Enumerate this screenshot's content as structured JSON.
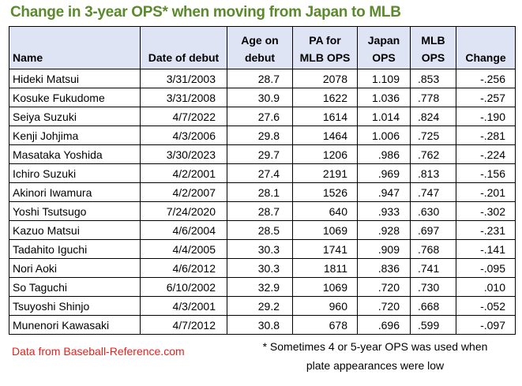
{
  "title": "Change in 3-year OPS* when moving from Japan to MLB",
  "headers": {
    "name": "Name",
    "date": "Date of debut",
    "age1": "Age on",
    "age2": "debut",
    "pa1": "PA for",
    "pa2": "MLB OPS",
    "jp1": "Japan",
    "jp2": "OPS",
    "mlb1": "MLB",
    "mlb2": "OPS",
    "change": "Change"
  },
  "rows": [
    [
      "Hideki Matsui",
      "3/31/2003",
      "28.7",
      "2078",
      "1.109",
      ".853",
      "-.256"
    ],
    [
      "Kosuke Fukudome",
      "3/31/2008",
      "30.9",
      "1622",
      "1.036",
      ".778",
      "-.257"
    ],
    [
      "Seiya Suzuki",
      "4/7/2022",
      "27.6",
      "1614",
      "1.014",
      ".824",
      "-.190"
    ],
    [
      "Kenji Johjima",
      "4/3/2006",
      "29.8",
      "1464",
      "1.006",
      ".725",
      "-.281"
    ],
    [
      "Masataka Yoshida",
      "3/30/2023",
      "29.7",
      "1206",
      ".986",
      ".762",
      "-.224"
    ],
    [
      "Ichiro Suzuki",
      "4/2/2001",
      "27.4",
      "2191",
      ".969",
      ".813",
      "-.156"
    ],
    [
      "Akinori Iwamura",
      "4/2/2007",
      "28.1",
      "1526",
      ".947",
      ".747",
      "-.201"
    ],
    [
      "Yoshi Tsutsugo",
      "7/24/2020",
      "28.7",
      "640",
      ".933",
      ".630",
      "-.302"
    ],
    [
      "Kazuo Matsui",
      "4/6/2004",
      "28.5",
      "1069",
      ".928",
      ".697",
      "-.231"
    ],
    [
      "Tadahito Iguchi",
      "4/4/2005",
      "30.3",
      "1741",
      ".909",
      ".768",
      "-.141"
    ],
    [
      "Nori Aoki",
      "4/6/2012",
      "30.3",
      "1811",
      ".836",
      ".741",
      "-.095"
    ],
    [
      "So Taguchi",
      "6/10/2002",
      "32.9",
      "1069",
      ".720",
      ".730",
      ".010"
    ],
    [
      "Tsuyoshi Shinjo",
      "4/3/2001",
      "29.2",
      "960",
      ".720",
      ".668",
      "-.052"
    ],
    [
      "Munenori Kawasaki",
      "4/7/2012",
      "30.8",
      "678",
      ".696",
      ".599",
      "-.097"
    ]
  ],
  "source": "Data from Baseball-Reference.com",
  "note_line1": "* Sometimes 4 or 5-year OPS was used when",
  "note_line2": "plate appearances were low"
}
